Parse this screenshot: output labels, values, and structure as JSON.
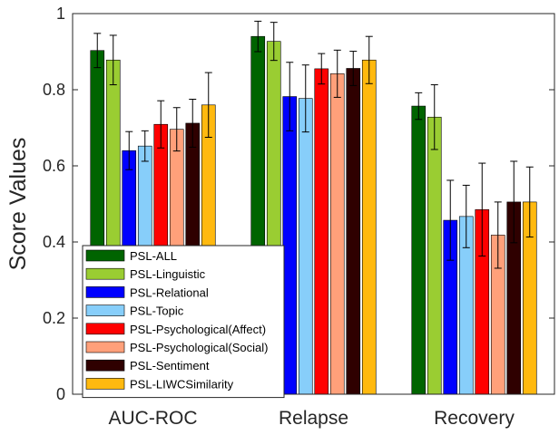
{
  "chart_data": {
    "type": "bar",
    "ylabel": "Score Values",
    "xlabel": "",
    "ylim": [
      0,
      1
    ],
    "yticks": [
      0,
      0.2,
      0.4,
      0.6,
      0.8,
      1
    ],
    "ytick_labels": [
      "0",
      "0.2",
      "0.4",
      "0.6",
      "0.8",
      "1"
    ],
    "grid": false,
    "legend_position": "bottom-left",
    "categories": [
      "AUC-ROC",
      "Relapse",
      "Recovery"
    ],
    "series": [
      {
        "name": "PSL-ALL",
        "color": "#006400",
        "values": [
          0.903,
          0.94,
          0.757
        ],
        "errors": [
          0.045,
          0.04,
          0.035
        ]
      },
      {
        "name": "PSL-Linguistic",
        "color": "#9ACD32",
        "values": [
          0.878,
          0.927,
          0.728
        ],
        "errors": [
          0.065,
          0.05,
          0.085
        ]
      },
      {
        "name": "PSL-Relational",
        "color": "#0000FF",
        "values": [
          0.64,
          0.782,
          0.457
        ],
        "errors": [
          0.05,
          0.09,
          0.105
        ]
      },
      {
        "name": "PSL-Topic",
        "color": "#87CEFA",
        "values": [
          0.652,
          0.777,
          0.467
        ],
        "errors": [
          0.04,
          0.088,
          0.082
        ]
      },
      {
        "name": "PSL-Psychological(Affect)",
        "color": "#FF0000",
        "values": [
          0.709,
          0.855,
          0.485
        ],
        "errors": [
          0.062,
          0.04,
          0.122
        ]
      },
      {
        "name": "PSL-Psychological(Social)",
        "color": "#FFA07A",
        "values": [
          0.696,
          0.842,
          0.418
        ],
        "errors": [
          0.057,
          0.062,
          0.087
        ]
      },
      {
        "name": "PSL-Sentiment",
        "color": "#2F0000",
        "values": [
          0.712,
          0.856,
          0.505
        ],
        "errors": [
          0.063,
          0.045,
          0.107
        ]
      },
      {
        "name": "PSL-LIWCSimilarity",
        "color": "#FFB90F",
        "values": [
          0.76,
          0.878,
          0.505
        ],
        "errors": [
          0.085,
          0.062,
          0.092
        ]
      }
    ]
  }
}
